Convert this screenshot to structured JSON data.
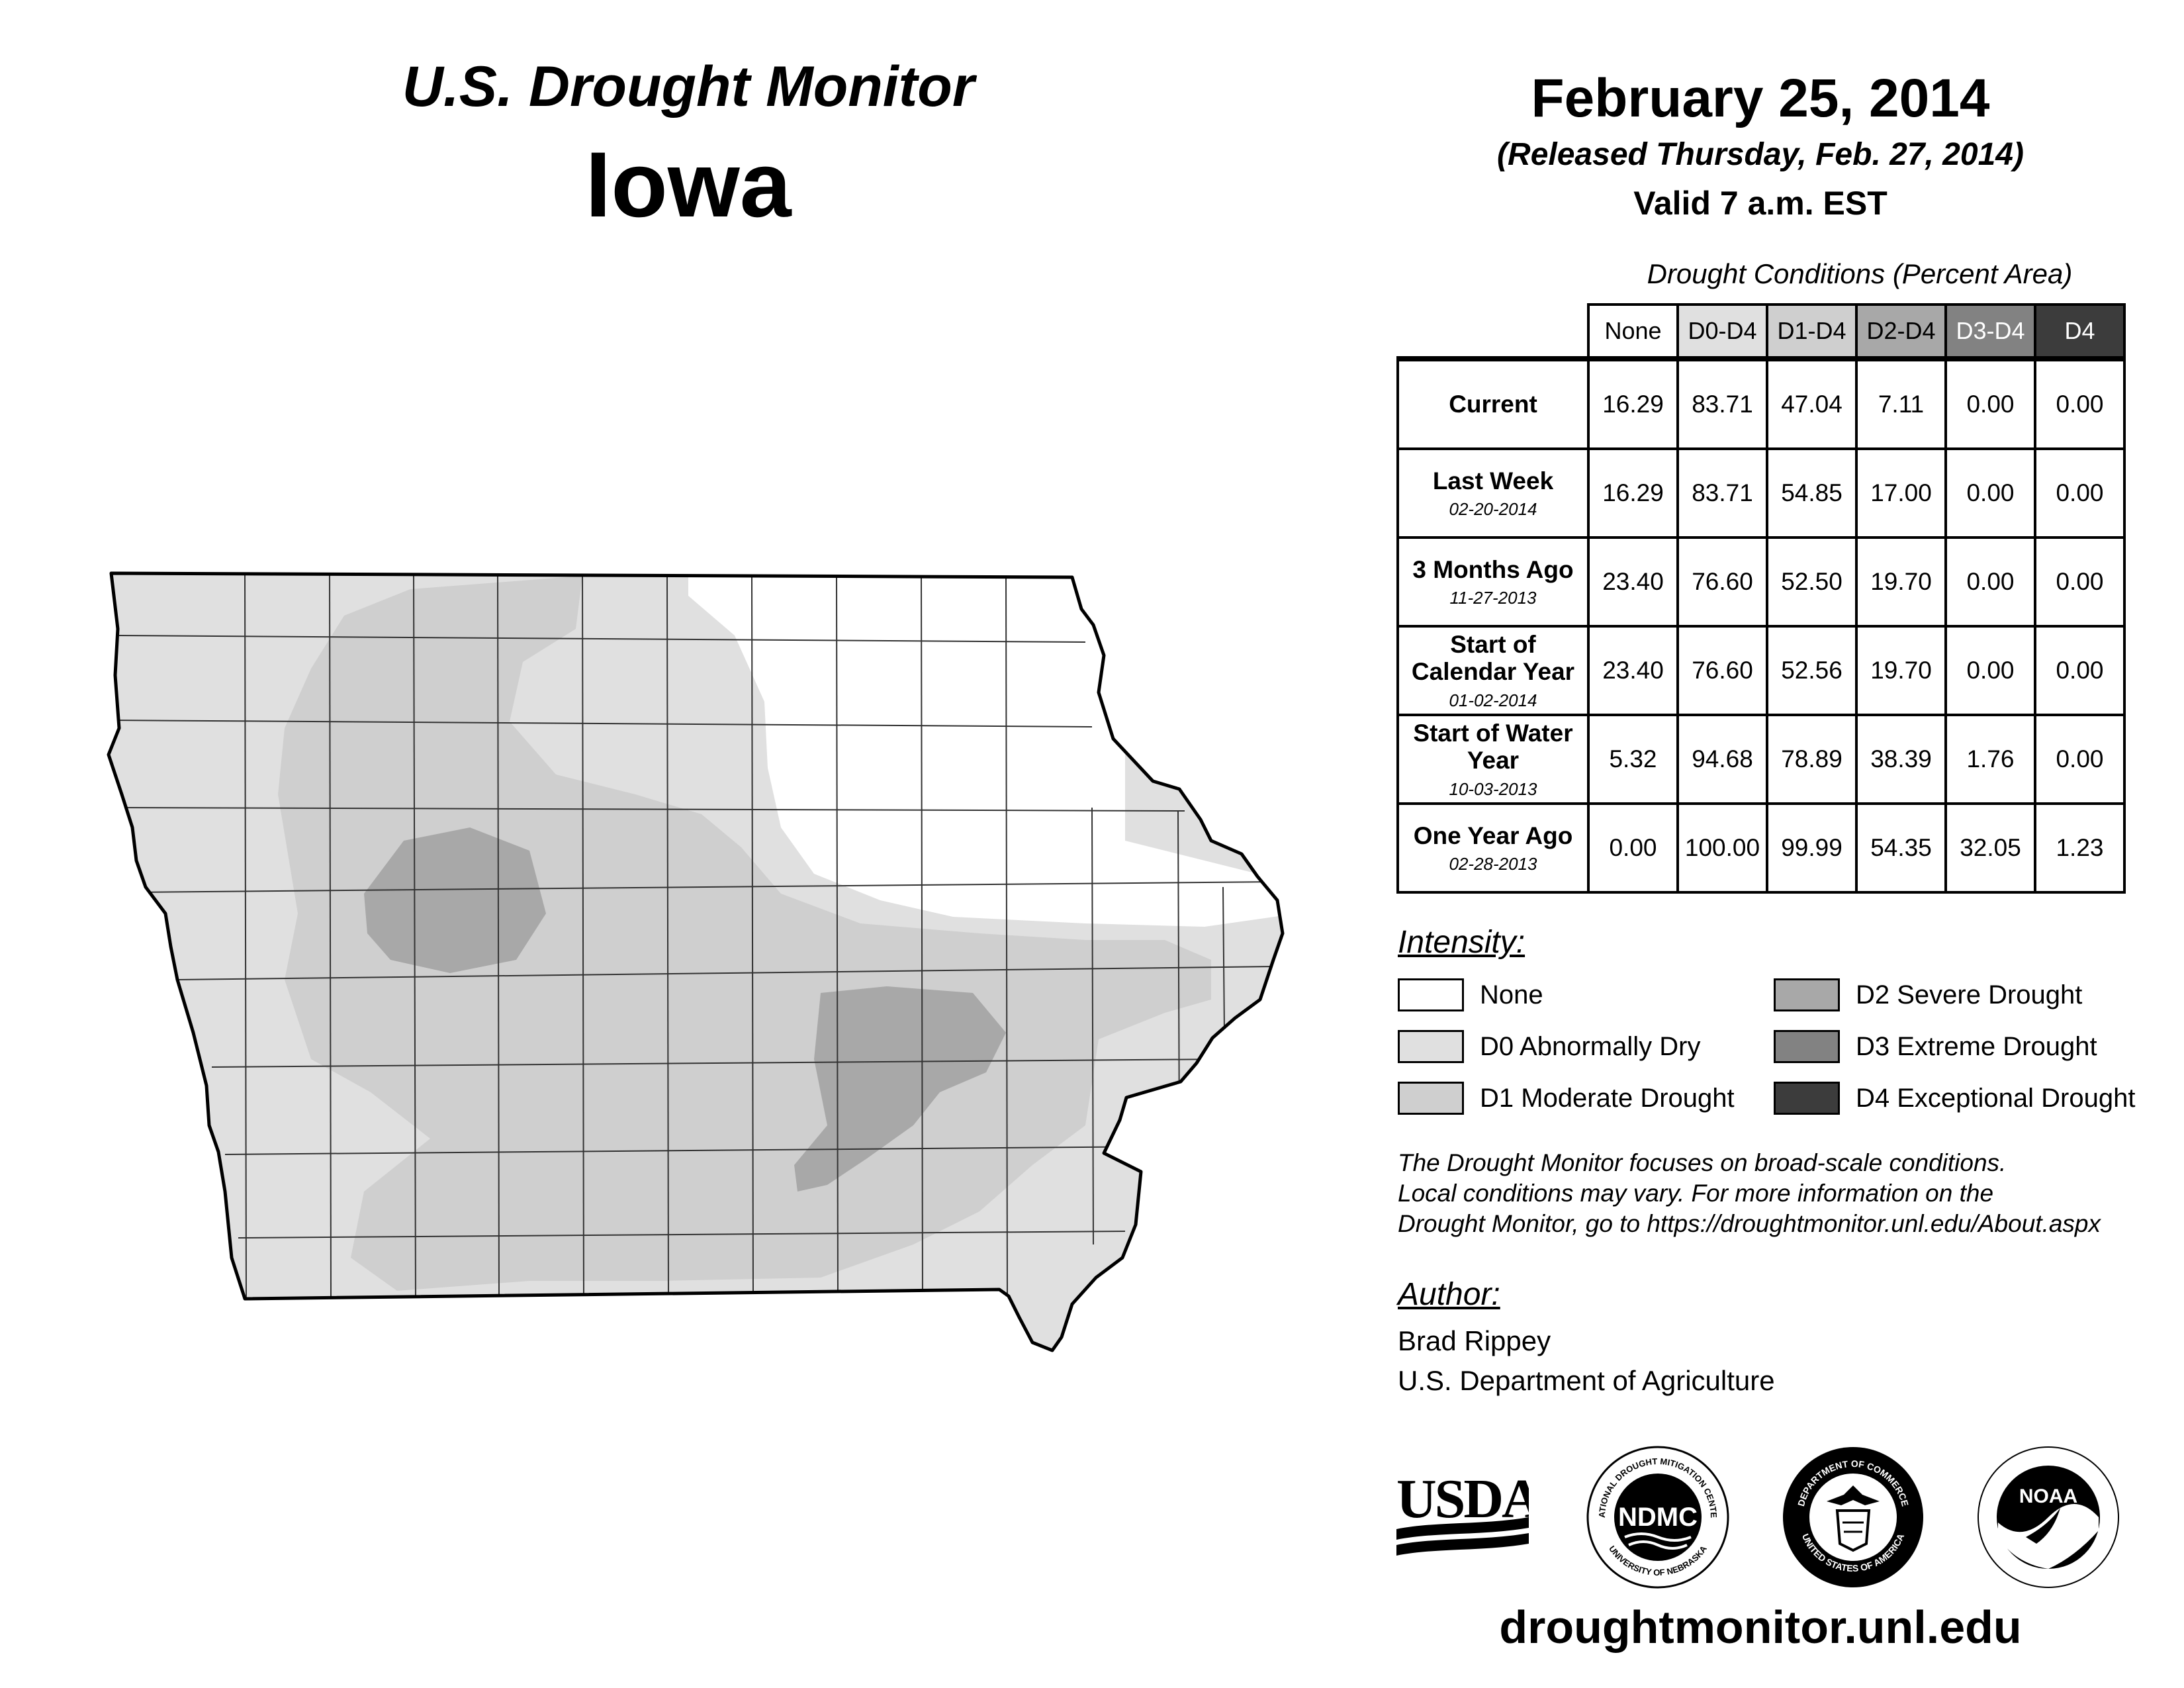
{
  "header": {
    "title": "U.S. Drought Monitor",
    "state": "Iowa",
    "date": "February 25, 2014",
    "released": "(Released Thursday, Feb. 27, 2014)",
    "valid": "Valid 7 a.m. EST"
  },
  "table": {
    "caption": "Drought Conditions (Percent Area)",
    "columns": [
      "None",
      "D0-D4",
      "D1-D4",
      "D2-D4",
      "D3-D4",
      "D4"
    ],
    "rows": [
      {
        "label": "Current",
        "sub": "",
        "values": [
          "16.29",
          "83.71",
          "47.04",
          "7.11",
          "0.00",
          "0.00"
        ]
      },
      {
        "label": "Last Week",
        "sub": "02-20-2014",
        "values": [
          "16.29",
          "83.71",
          "54.85",
          "17.00",
          "0.00",
          "0.00"
        ]
      },
      {
        "label": "3 Months Ago",
        "sub": "11-27-2013",
        "values": [
          "23.40",
          "76.60",
          "52.50",
          "19.70",
          "0.00",
          "0.00"
        ]
      },
      {
        "label": "Start of Calendar Year",
        "sub": "01-02-2014",
        "values": [
          "23.40",
          "76.60",
          "52.56",
          "19.70",
          "0.00",
          "0.00"
        ]
      },
      {
        "label": "Start of Water Year",
        "sub": "10-03-2013",
        "values": [
          "5.32",
          "94.68",
          "78.89",
          "38.39",
          "1.76",
          "0.00"
        ]
      },
      {
        "label": "One Year Ago",
        "sub": "02-28-2013",
        "values": [
          "0.00",
          "100.00",
          "99.99",
          "54.35",
          "32.05",
          "1.23"
        ]
      }
    ]
  },
  "legend": {
    "title": "Intensity:",
    "items": [
      {
        "label": "None",
        "color": "#ffffff"
      },
      {
        "label": "D0 Abnormally Dry",
        "color": "#e0e0e0"
      },
      {
        "label": "D1 Moderate Drought",
        "color": "#cfcfcf"
      },
      {
        "label": "D2 Severe Drought",
        "color": "#a8a8a8"
      },
      {
        "label": "D3 Extreme Drought",
        "color": "#828282"
      },
      {
        "label": "D4 Exceptional Drought",
        "color": "#3c3c3c"
      }
    ]
  },
  "note": {
    "line1": "The Drought Monitor focuses on broad-scale conditions.",
    "line2": "Local conditions may vary. For more information on the",
    "line3": "Drought Monitor, go to https://droughtmonitor.unl.edu/About.aspx"
  },
  "author": {
    "title": "Author:",
    "name": "Brad Rippey",
    "org": "U.S. Department of Agriculture"
  },
  "logos": {
    "usda": "USDA",
    "ndmc": "NDMC",
    "ndmc_ring_top": "NATIONAL DROUGHT MITIGATION CENTER",
    "ndmc_ring_bottom": "UNIVERSITY OF NEBRASKA",
    "doc_ring": "DEPARTMENT OF COMMERCE",
    "doc_ring_bottom": "UNITED STATES OF AMERICA",
    "noaa": "NOAA"
  },
  "website": "droughtmonitor.unl.edu"
}
